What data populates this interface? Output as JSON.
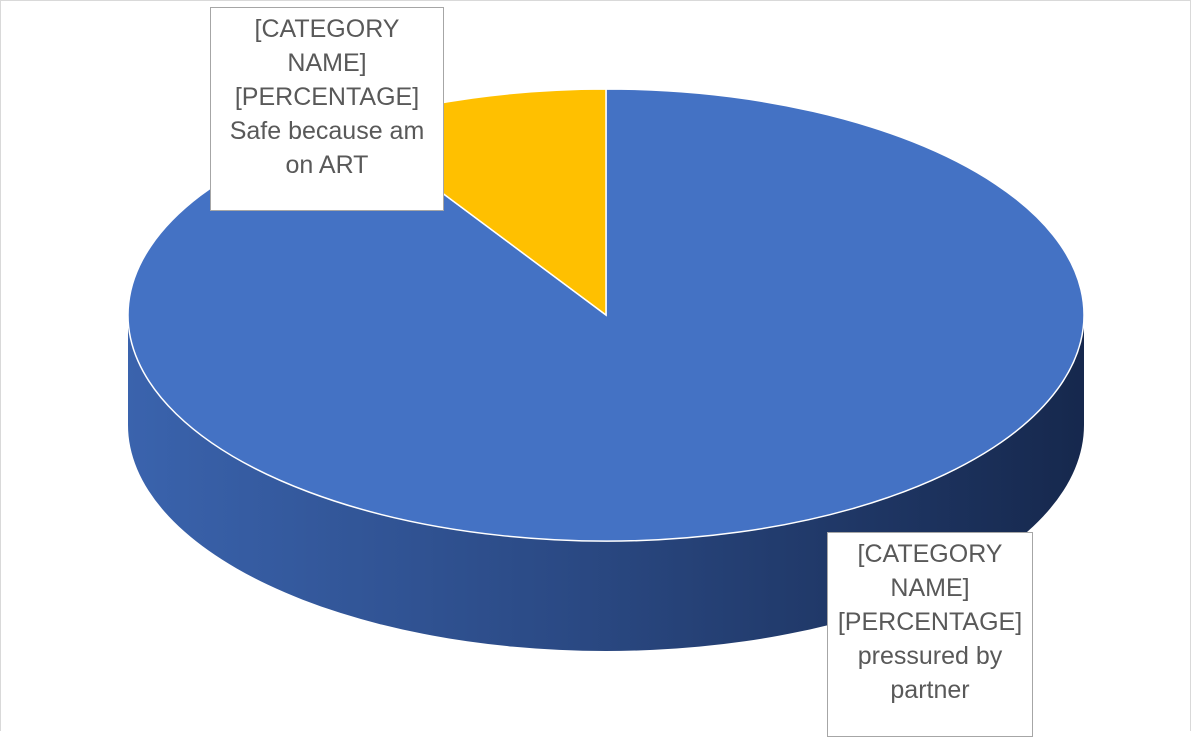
{
  "chart_data": {
    "type": "pie",
    "style": "3d",
    "title": "",
    "slices": [
      {
        "label_lines": [
          "[CATEGORY",
          "NAME]",
          "[PERCENTAGE]",
          "pressured by",
          "partner"
        ],
        "value": 91,
        "color": "#4472c4"
      },
      {
        "label_lines": [
          "[CATEGORY",
          "NAME]",
          "[PERCENTAGE]",
          "Safe because am",
          "on ART"
        ],
        "value": 9,
        "color": "#ffc000"
      }
    ]
  }
}
